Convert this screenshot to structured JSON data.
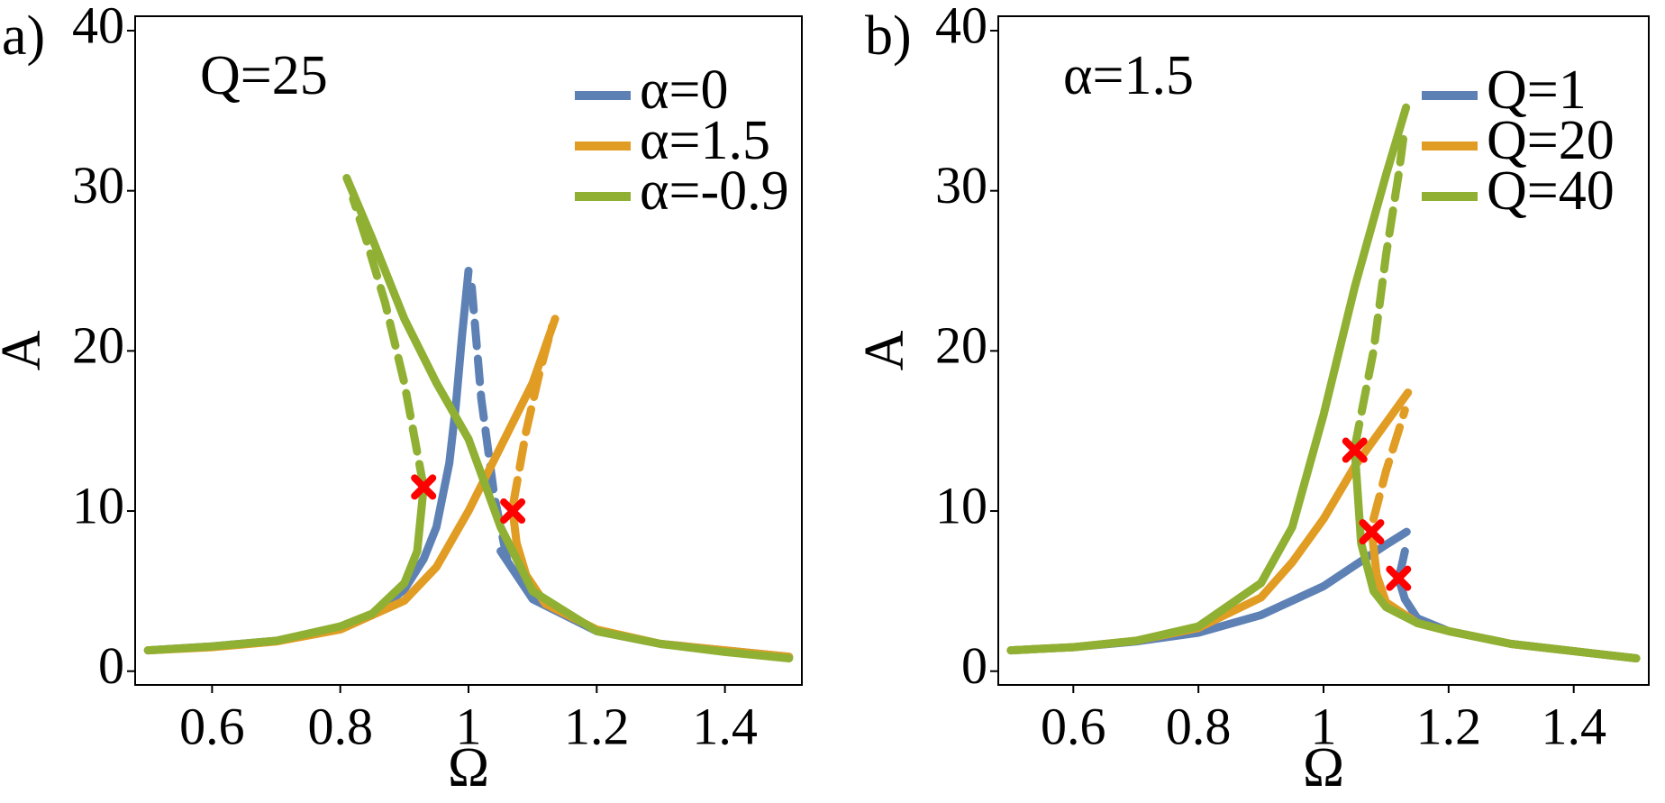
{
  "chart_data": [
    {
      "type": "line",
      "panel_label": "a)",
      "annotation": "Q=25",
      "xlabel": "Ω",
      "ylabel": "A",
      "xlim": [
        0.48,
        1.52
      ],
      "ylim": [
        -0.86,
        40.9
      ],
      "xticks": [
        0.6,
        0.8,
        1,
        1.2,
        1.4
      ],
      "yticks": [
        0,
        10,
        20,
        30,
        40
      ],
      "legend": "top-right",
      "series": [
        {
          "name": "α=0",
          "color": "#5e81b5",
          "x": [
            0.5,
            0.6,
            0.7,
            0.8,
            0.85,
            0.9,
            0.93,
            0.95,
            0.97,
            0.98,
            0.99,
            1.0,
            null,
            1.05,
            1.1,
            1.2,
            1.3,
            1.5
          ],
          "values": [
            1.3,
            1.55,
            1.9,
            2.7,
            3.5,
            5.1,
            7,
            9,
            13,
            16.5,
            21,
            25,
            null,
            7.5,
            4.5,
            2.5,
            1.7,
            0.9
          ],
          "dashed_x": [
            1.005,
            1.02,
            1.04,
            1.06
          ],
          "dashed_values": [
            24,
            17,
            11,
            7
          ]
        },
        {
          "name": "α=1.5",
          "color": "#e19c24",
          "x": [
            0.5,
            0.6,
            0.7,
            0.8,
            0.9,
            0.95,
            1.0,
            1.05,
            1.1,
            1.135,
            null,
            1.069,
            1.075,
            1.09,
            1.12,
            1.2,
            1.3,
            1.5
          ],
          "values": [
            1.3,
            1.5,
            1.85,
            2.6,
            4.4,
            6.5,
            10,
            14,
            18,
            22,
            null,
            10,
            8,
            6,
            4.2,
            2.6,
            1.7,
            0.9
          ],
          "dashed_x": [
            1.07,
            1.09,
            1.11,
            1.13
          ],
          "dashed_values": [
            10.5,
            15,
            18.5,
            21.5
          ]
        },
        {
          "name": "α=-0.9",
          "color": "#8fb032",
          "x": [
            0.5,
            0.6,
            0.7,
            0.8,
            0.85,
            0.9,
            0.92,
            0.93,
            null,
            0.81,
            0.85,
            0.9,
            0.95,
            1.0,
            1.05,
            1.1,
            1.2,
            1.3,
            1.4,
            1.5
          ],
          "values": [
            1.3,
            1.55,
            1.9,
            2.8,
            3.6,
            5.5,
            7.5,
            11.5,
            null,
            30.8,
            27,
            22,
            18,
            14.5,
            9,
            5,
            2.5,
            1.7,
            1.2,
            0.8
          ],
          "dashed_x": [
            0.93,
            0.9,
            0.87,
            0.84,
            0.82
          ],
          "dashed_values": [
            11.5,
            18,
            23,
            27,
            29.5
          ]
        }
      ],
      "markers": {
        "color": "#ff0000",
        "x": [
          0.93,
          1.069
        ],
        "values": [
          11.5,
          10
        ]
      }
    },
    {
      "type": "line",
      "panel_label": "b)",
      "annotation": "α=1.5",
      "xlabel": "Ω",
      "ylabel": "A",
      "xlim": [
        0.48,
        1.52
      ],
      "ylim": [
        -0.86,
        40.9
      ],
      "xticks": [
        0.6,
        0.8,
        1,
        1.2,
        1.4
      ],
      "yticks": [
        0,
        10,
        20,
        30,
        40
      ],
      "legend": "top-right",
      "series": [
        {
          "name": "Q=1",
          "color": "#5e81b5",
          "x": [
            0.5,
            0.6,
            0.7,
            0.8,
            0.9,
            1.0,
            1.05,
            1.1,
            1.133,
            null,
            1.12,
            1.13,
            1.15,
            1.2,
            1.3,
            1.5
          ],
          "values": [
            1.3,
            1.5,
            1.85,
            2.4,
            3.5,
            5.3,
            6.6,
            7.9,
            8.7,
            null,
            5.8,
            4.5,
            3.3,
            2.5,
            1.7,
            0.8
          ],
          "dashed_x": [
            1.13,
            1.125,
            1.12
          ],
          "dashed_values": [
            7.5,
            6.6,
            5.8
          ]
        },
        {
          "name": "Q=20",
          "color": "#e19c24",
          "x": [
            0.5,
            0.6,
            0.7,
            0.8,
            0.9,
            0.95,
            1.0,
            1.05,
            1.1,
            1.135,
            null,
            1.077,
            1.085,
            1.1,
            1.15,
            1.2,
            1.3,
            1.5
          ],
          "values": [
            1.3,
            1.5,
            1.9,
            2.7,
            4.6,
            6.8,
            9.5,
            12.8,
            15.5,
            17.4,
            null,
            8.7,
            6,
            4.3,
            3,
            2.5,
            1.7,
            0.8
          ],
          "dashed_x": [
            1.08,
            1.1,
            1.12,
            1.13
          ],
          "dashed_values": [
            9.5,
            12.5,
            15,
            16.3
          ]
        },
        {
          "name": "Q=40",
          "color": "#8fb032",
          "x": [
            0.5,
            0.6,
            0.7,
            0.8,
            0.9,
            0.95,
            1.0,
            1.05,
            1.1,
            1.132,
            null,
            1.05,
            1.06,
            1.08,
            1.1,
            1.15,
            1.2,
            1.3,
            1.5
          ],
          "values": [
            1.3,
            1.5,
            1.9,
            2.8,
            5.5,
            9,
            16,
            24,
            31,
            35.2,
            null,
            13.8,
            8,
            5,
            4,
            3,
            2.5,
            1.7,
            0.8
          ],
          "dashed_x": [
            1.05,
            1.08,
            1.1,
            1.12,
            1.13
          ],
          "dashed_values": [
            14,
            20,
            26,
            31,
            34
          ]
        }
      ],
      "markers": {
        "color": "#ff0000",
        "x": [
          1.05,
          1.077,
          1.12
        ],
        "values": [
          13.8,
          8.7,
          5.8
        ]
      }
    }
  ]
}
